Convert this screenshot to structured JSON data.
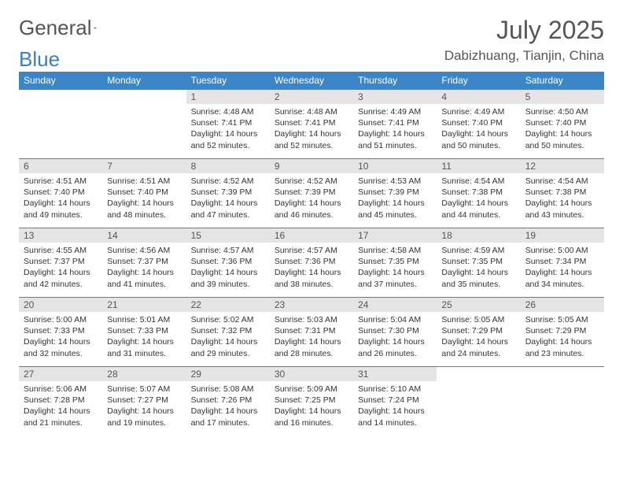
{
  "logo": {
    "text1": "General",
    "text2": "Blue"
  },
  "title": "July 2025",
  "location": "Dabizhuang, Tianjin, China",
  "header_bg": "#3a86c8",
  "header_fg": "#ffffff",
  "daynum_bg": "#e5e5e5",
  "dow": [
    "Sunday",
    "Monday",
    "Tuesday",
    "Wednesday",
    "Thursday",
    "Friday",
    "Saturday"
  ],
  "weeks": [
    [
      {
        "n": "",
        "sr": "",
        "ss": "",
        "dl": ""
      },
      {
        "n": "",
        "sr": "",
        "ss": "",
        "dl": ""
      },
      {
        "n": "1",
        "sr": "4:48 AM",
        "ss": "7:41 PM",
        "dl": "14 hours and 52 minutes."
      },
      {
        "n": "2",
        "sr": "4:48 AM",
        "ss": "7:41 PM",
        "dl": "14 hours and 52 minutes."
      },
      {
        "n": "3",
        "sr": "4:49 AM",
        "ss": "7:41 PM",
        "dl": "14 hours and 51 minutes."
      },
      {
        "n": "4",
        "sr": "4:49 AM",
        "ss": "7:40 PM",
        "dl": "14 hours and 50 minutes."
      },
      {
        "n": "5",
        "sr": "4:50 AM",
        "ss": "7:40 PM",
        "dl": "14 hours and 50 minutes."
      }
    ],
    [
      {
        "n": "6",
        "sr": "4:51 AM",
        "ss": "7:40 PM",
        "dl": "14 hours and 49 minutes."
      },
      {
        "n": "7",
        "sr": "4:51 AM",
        "ss": "7:40 PM",
        "dl": "14 hours and 48 minutes."
      },
      {
        "n": "8",
        "sr": "4:52 AM",
        "ss": "7:39 PM",
        "dl": "14 hours and 47 minutes."
      },
      {
        "n": "9",
        "sr": "4:52 AM",
        "ss": "7:39 PM",
        "dl": "14 hours and 46 minutes."
      },
      {
        "n": "10",
        "sr": "4:53 AM",
        "ss": "7:39 PM",
        "dl": "14 hours and 45 minutes."
      },
      {
        "n": "11",
        "sr": "4:54 AM",
        "ss": "7:38 PM",
        "dl": "14 hours and 44 minutes."
      },
      {
        "n": "12",
        "sr": "4:54 AM",
        "ss": "7:38 PM",
        "dl": "14 hours and 43 minutes."
      }
    ],
    [
      {
        "n": "13",
        "sr": "4:55 AM",
        "ss": "7:37 PM",
        "dl": "14 hours and 42 minutes."
      },
      {
        "n": "14",
        "sr": "4:56 AM",
        "ss": "7:37 PM",
        "dl": "14 hours and 41 minutes."
      },
      {
        "n": "15",
        "sr": "4:57 AM",
        "ss": "7:36 PM",
        "dl": "14 hours and 39 minutes."
      },
      {
        "n": "16",
        "sr": "4:57 AM",
        "ss": "7:36 PM",
        "dl": "14 hours and 38 minutes."
      },
      {
        "n": "17",
        "sr": "4:58 AM",
        "ss": "7:35 PM",
        "dl": "14 hours and 37 minutes."
      },
      {
        "n": "18",
        "sr": "4:59 AM",
        "ss": "7:35 PM",
        "dl": "14 hours and 35 minutes."
      },
      {
        "n": "19",
        "sr": "5:00 AM",
        "ss": "7:34 PM",
        "dl": "14 hours and 34 minutes."
      }
    ],
    [
      {
        "n": "20",
        "sr": "5:00 AM",
        "ss": "7:33 PM",
        "dl": "14 hours and 32 minutes."
      },
      {
        "n": "21",
        "sr": "5:01 AM",
        "ss": "7:33 PM",
        "dl": "14 hours and 31 minutes."
      },
      {
        "n": "22",
        "sr": "5:02 AM",
        "ss": "7:32 PM",
        "dl": "14 hours and 29 minutes."
      },
      {
        "n": "23",
        "sr": "5:03 AM",
        "ss": "7:31 PM",
        "dl": "14 hours and 28 minutes."
      },
      {
        "n": "24",
        "sr": "5:04 AM",
        "ss": "7:30 PM",
        "dl": "14 hours and 26 minutes."
      },
      {
        "n": "25",
        "sr": "5:05 AM",
        "ss": "7:29 PM",
        "dl": "14 hours and 24 minutes."
      },
      {
        "n": "26",
        "sr": "5:05 AM",
        "ss": "7:29 PM",
        "dl": "14 hours and 23 minutes."
      }
    ],
    [
      {
        "n": "27",
        "sr": "5:06 AM",
        "ss": "7:28 PM",
        "dl": "14 hours and 21 minutes."
      },
      {
        "n": "28",
        "sr": "5:07 AM",
        "ss": "7:27 PM",
        "dl": "14 hours and 19 minutes."
      },
      {
        "n": "29",
        "sr": "5:08 AM",
        "ss": "7:26 PM",
        "dl": "14 hours and 17 minutes."
      },
      {
        "n": "30",
        "sr": "5:09 AM",
        "ss": "7:25 PM",
        "dl": "14 hours and 16 minutes."
      },
      {
        "n": "31",
        "sr": "5:10 AM",
        "ss": "7:24 PM",
        "dl": "14 hours and 14 minutes."
      },
      {
        "n": "",
        "sr": "",
        "ss": "",
        "dl": ""
      },
      {
        "n": "",
        "sr": "",
        "ss": "",
        "dl": ""
      }
    ]
  ],
  "labels": {
    "sunrise": "Sunrise: ",
    "sunset": "Sunset: ",
    "daylight": "Daylight: "
  }
}
